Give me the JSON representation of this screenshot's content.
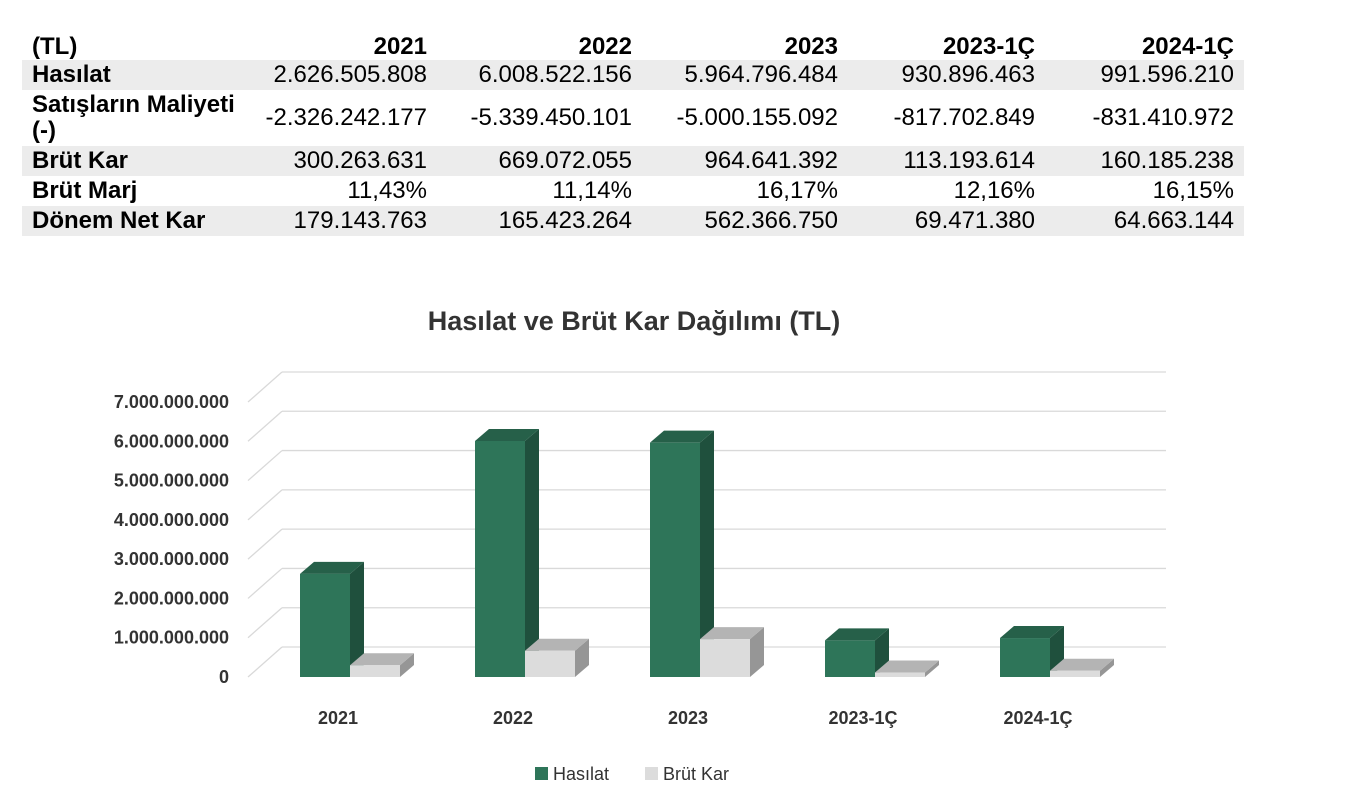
{
  "table": {
    "headers": [
      "(TL)",
      "2021",
      "2022",
      "2023",
      "2023-1Ç",
      "2024-1Ç"
    ],
    "rows": [
      {
        "label": "Hasılat",
        "values": [
          "2.626.505.808",
          "6.008.522.156",
          "5.964.796.484",
          "930.896.463",
          "991.596.210"
        ]
      },
      {
        "label": "Satışların Maliyeti (-)",
        "values": [
          "-2.326.242.177",
          "-5.339.450.101",
          "-5.000.155.092",
          "-817.702.849",
          "-831.410.972"
        ]
      },
      {
        "label": "Brüt Kar",
        "values": [
          "300.263.631",
          "669.072.055",
          "964.641.392",
          "113.193.614",
          "160.185.238"
        ]
      },
      {
        "label": "Brüt Marj",
        "values": [
          "11,43%",
          "11,14%",
          "16,17%",
          "12,16%",
          "16,15%"
        ]
      },
      {
        "label": "Dönem Net Kar",
        "values": [
          "179.143.763",
          "165.423.264",
          "562.366.750",
          "69.471.380",
          "64.663.144"
        ]
      }
    ]
  },
  "chart_data": {
    "type": "bar",
    "title": "Hasılat ve Brüt Kar Dağılımı (TL)",
    "categories": [
      "2021",
      "2022",
      "2023",
      "2023-1Ç",
      "2024-1Ç"
    ],
    "series": [
      {
        "name": "Hasılat",
        "values": [
          2626505808,
          6008522156,
          5964796484,
          930896463,
          991596210
        ],
        "color": "#2e7559"
      },
      {
        "name": "Brüt Kar",
        "values": [
          300263631,
          669072055,
          964641392,
          113193614,
          160185238
        ],
        "color": "#dcdcdc"
      }
    ],
    "ylim": [
      0,
      7000000000
    ],
    "yticks": [
      "0",
      "1.000.000.000",
      "2.000.000.000",
      "3.000.000.000",
      "4.000.000.000",
      "5.000.000.000",
      "6.000.000.000",
      "7.000.000.000"
    ],
    "grid": true,
    "legend_position": "bottom",
    "style": "3d-column"
  }
}
